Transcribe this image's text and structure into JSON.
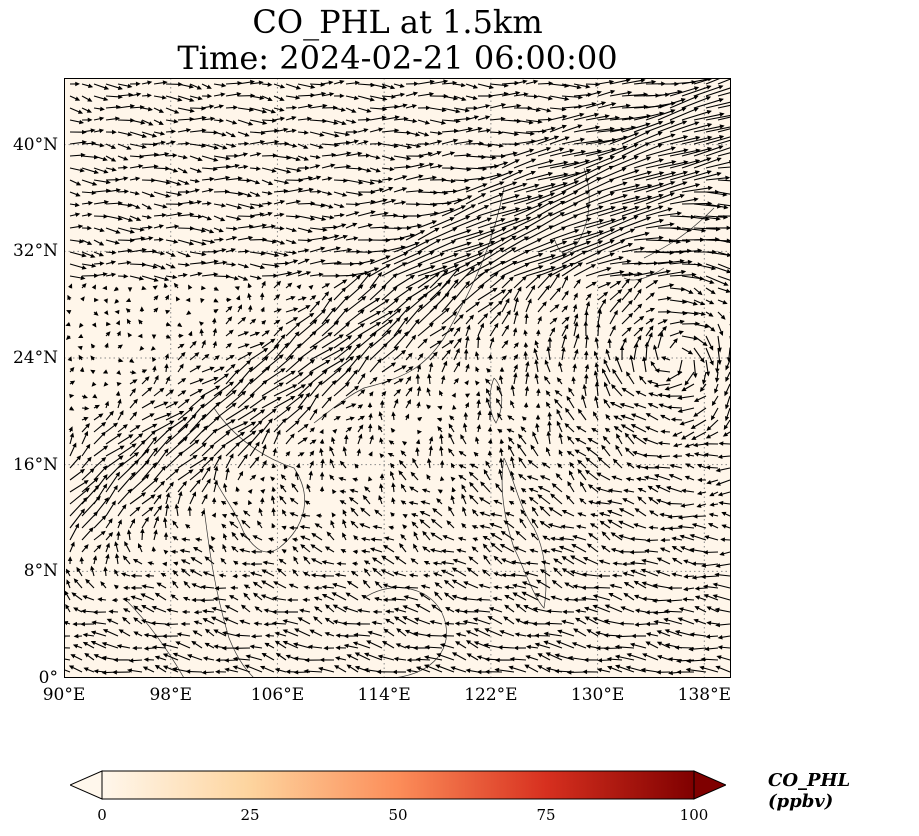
{
  "title": {
    "line1": "CO_PHL at 1.5km",
    "line2": "Time: 2024-02-21 06:00:00"
  },
  "map": {
    "lon_range": [
      90,
      140
    ],
    "lat_range": [
      0,
      45
    ],
    "background_color": "#fff6ea",
    "grid": "dotted",
    "lat_ticks": [
      {
        "value": 40,
        "label": "40°N"
      },
      {
        "value": 32,
        "label": "32°N"
      },
      {
        "value": 24,
        "label": "24°N"
      },
      {
        "value": 16,
        "label": "16°N"
      },
      {
        "value": 8,
        "label": "8°N"
      },
      {
        "value": 0,
        "label": "0°"
      }
    ],
    "lon_ticks": [
      {
        "value": 90,
        "label": "90°E"
      },
      {
        "value": 98,
        "label": "98°E"
      },
      {
        "value": 106,
        "label": "106°E"
      },
      {
        "value": 114,
        "label": "114°E"
      },
      {
        "value": 122,
        "label": "122°E"
      },
      {
        "value": 130,
        "label": "130°E"
      },
      {
        "value": 138,
        "label": "138°E"
      }
    ]
  },
  "colorbar": {
    "label": "CO_PHL (ppbv)",
    "min": 0,
    "max": 100,
    "extend": "both",
    "colors": [
      "#fff7ec",
      "#fdd49e",
      "#fc8d59",
      "#d7301f",
      "#7f0000"
    ],
    "ticks": [
      {
        "value": 0,
        "label": "0"
      },
      {
        "value": 25,
        "label": "25"
      },
      {
        "value": 50,
        "label": "50"
      },
      {
        "value": 75,
        "label": "75"
      },
      {
        "value": 100,
        "label": "100"
      }
    ]
  }
}
